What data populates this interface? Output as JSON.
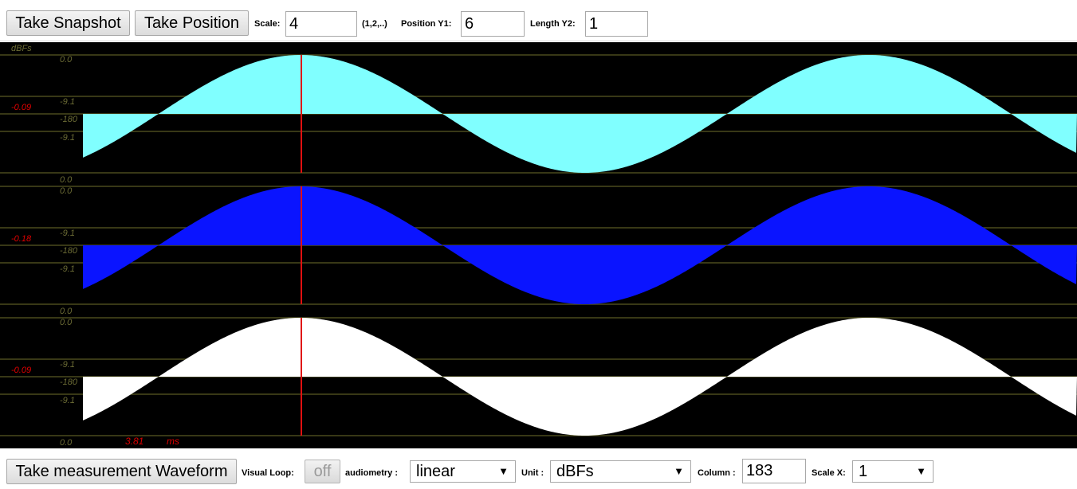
{
  "toolbar": {
    "snapshot_label": "Take Snapshot",
    "position_label": "Take Position",
    "scale_label": "Scale:",
    "scale_value": "4",
    "scale_hint": "(1,2,..)",
    "position_y1_label": "Position Y1:",
    "position_y1_value": "6",
    "length_y2_label": "Length Y2:",
    "length_y2_value": "1"
  },
  "scope": {
    "unit_label": "dBFs",
    "cursor_time": "3.81",
    "time_unit": "ms",
    "channels": [
      {
        "color": "#80ffff",
        "level": "-0.09",
        "top_label": "0.0",
        "upper_label": "-9.1",
        "center_label": "-180",
        "lower_label": "-9.1",
        "bottom_label": "0.0"
      },
      {
        "color": "#0a14ff",
        "level": "-0.18",
        "top_label": "0.0",
        "upper_label": "-9.1",
        "center_label": "-180",
        "lower_label": "-9.1",
        "bottom_label": "0.0"
      },
      {
        "color": "#ffffff",
        "level": "-0.09",
        "top_label": "0.0",
        "upper_label": "-9.1",
        "center_label": "-180",
        "lower_label": "-9.1",
        "bottom_label": "0.0"
      }
    ],
    "colors": {
      "grid": "#4a4a1e",
      "axis_text": "#6b6b34",
      "level_text": "#e00000",
      "cursor": "#e01010"
    }
  },
  "bottom": {
    "measure_label": "Take measurement Waveform",
    "visual_loop_label": "Visual Loop:",
    "visual_loop_value": "off",
    "audiometry_label": "audiometry :",
    "audiometry_value": "linear",
    "unit_label": "Unit :",
    "unit_value": "dBFs",
    "column_label": "Column :",
    "column_value": "183",
    "scale_x_label": "Scale X:",
    "scale_x_value": "1"
  }
}
